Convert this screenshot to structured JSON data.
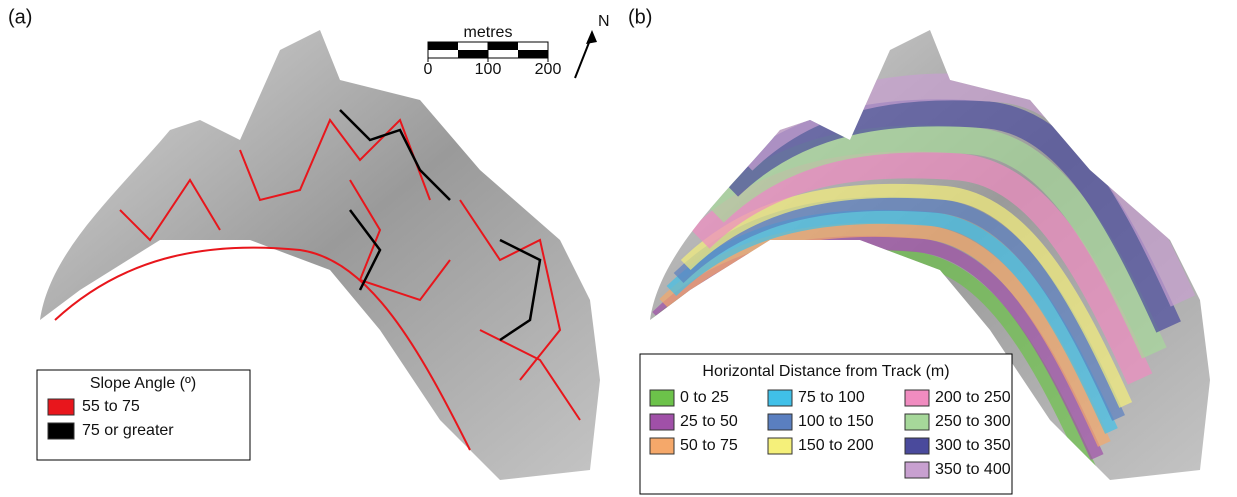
{
  "panel_a": {
    "label": "(a)",
    "legend": {
      "title": "Slope Angle (º)",
      "items": [
        {
          "label": "55 to 75",
          "color": "#e8161c"
        },
        {
          "label": "75 or greater",
          "color": "#000000"
        }
      ]
    },
    "scale_bar": {
      "label": "metres",
      "ticks": [
        0,
        100,
        200
      ]
    },
    "north": "N"
  },
  "panel_b": {
    "label": "(b)",
    "legend": {
      "title": "Horizontal Distance from Track (m)",
      "columns": [
        [
          {
            "label": "0 to 25",
            "color": "#6cc24a"
          },
          {
            "label": "25 to 50",
            "color": "#a050a8"
          },
          {
            "label": "50 to 75",
            "color": "#f5a86a"
          }
        ],
        [
          {
            "label": "75 to 100",
            "color": "#40c0e8"
          },
          {
            "label": "100 to 150",
            "color": "#5a7fc0"
          },
          {
            "label": "150 to 200",
            "color": "#f5f07a"
          }
        ],
        [
          {
            "label": "200 to 250",
            "color": "#f08cc0"
          },
          {
            "label": "250 to 300",
            "color": "#a6d89a"
          },
          {
            "label": "300 to 350",
            "color": "#4a4a9c"
          },
          {
            "label": "350 to 400",
            "color": "#c8a0d0"
          }
        ]
      ]
    }
  }
}
